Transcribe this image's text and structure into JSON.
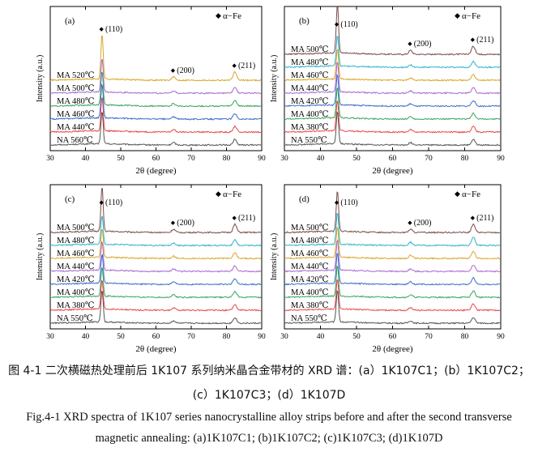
{
  "chart_data": [
    {
      "type": "line",
      "panel_label": "(a)",
      "xlabel": "2θ (degree)",
      "ylabel": "Intensity (a.u.)",
      "xlim": [
        30,
        90
      ],
      "xticks": [
        30,
        40,
        50,
        60,
        70,
        80,
        90
      ],
      "legend_marker": "◆",
      "legend_label": "α−Fe",
      "legend_position": "top-right",
      "peaks": [
        {
          "label": "(110)",
          "x": 44.7
        },
        {
          "label": "(200)",
          "x": 65.0
        },
        {
          "label": "(211)",
          "x": 82.4
        }
      ],
      "series": [
        {
          "name": "NA 560℃",
          "color": "#555555",
          "peak_heights": [
            40,
            3,
            7
          ]
        },
        {
          "name": "MA 440℃",
          "color": "#e8474b",
          "peak_heights": [
            42,
            3,
            7
          ]
        },
        {
          "name": "MA 460℃",
          "color": "#3b6fc7",
          "peak_heights": [
            42,
            3,
            7
          ]
        },
        {
          "name": "MA 480℃",
          "color": "#3aa45a",
          "peak_heights": [
            42,
            3,
            7
          ]
        },
        {
          "name": "MA 500℃",
          "color": "#a86ad1",
          "peak_heights": [
            42,
            3,
            7
          ]
        },
        {
          "name": "MA 520℃",
          "color": "#d9a628",
          "peak_heights": [
            55,
            4,
            10
          ]
        }
      ]
    },
    {
      "type": "line",
      "panel_label": "(b)",
      "xlabel": "2θ (degree)",
      "ylabel": "Intensity (a.u.)",
      "xlim": [
        30,
        90
      ],
      "xticks": [
        30,
        40,
        50,
        60,
        70,
        80,
        90
      ],
      "legend_marker": "◆",
      "legend_label": "α−Fe",
      "legend_position": "top-right",
      "peaks": [
        {
          "label": "(110)",
          "x": 44.7
        },
        {
          "label": "(200)",
          "x": 65.0
        },
        {
          "label": "(211)",
          "x": 82.4
        }
      ],
      "series": [
        {
          "name": "NA 550℃",
          "color": "#555555",
          "peak_heights": [
            40,
            3,
            7
          ]
        },
        {
          "name": "MA 380℃",
          "color": "#e8474b",
          "peak_heights": [
            38,
            3,
            7
          ]
        },
        {
          "name": "MA 400℃",
          "color": "#3aa45a",
          "peak_heights": [
            38,
            3,
            7
          ]
        },
        {
          "name": "MA 420℃",
          "color": "#3b6fc7",
          "peak_heights": [
            38,
            3,
            7
          ]
        },
        {
          "name": "MA 440℃",
          "color": "#a86ad1",
          "peak_heights": [
            38,
            3,
            7
          ]
        },
        {
          "name": "MA 460℃",
          "color": "#d9a628",
          "peak_heights": [
            38,
            3,
            7
          ]
        },
        {
          "name": "MA 480℃",
          "color": "#2fb5c9",
          "peak_heights": [
            38,
            3,
            7
          ]
        },
        {
          "name": "MA 500℃",
          "color": "#7a4a4a",
          "peak_heights": [
            60,
            5,
            10
          ]
        }
      ]
    },
    {
      "type": "line",
      "panel_label": "(c)",
      "xlabel": "2θ (degree)",
      "ylabel": "Intensity (a.u.)",
      "xlim": [
        30,
        90
      ],
      "xticks": [
        30,
        40,
        50,
        60,
        70,
        80,
        90
      ],
      "legend_marker": "◆",
      "legend_label": "α−Fe",
      "legend_position": "top-right",
      "peaks": [
        {
          "label": "(110)",
          "x": 44.7
        },
        {
          "label": "(200)",
          "x": 65.0
        },
        {
          "label": "(211)",
          "x": 82.4
        }
      ],
      "series": [
        {
          "name": "NA 550℃",
          "color": "#555555",
          "peak_heights": [
            40,
            3,
            7
          ]
        },
        {
          "name": "MA 380℃",
          "color": "#e8474b",
          "peak_heights": [
            36,
            3,
            7
          ]
        },
        {
          "name": "MA 400℃",
          "color": "#3aa45a",
          "peak_heights": [
            36,
            3,
            7
          ]
        },
        {
          "name": "MA 420℃",
          "color": "#3b6fc7",
          "peak_heights": [
            36,
            3,
            7
          ]
        },
        {
          "name": "MA 440℃",
          "color": "#a86ad1",
          "peak_heights": [
            36,
            3,
            7
          ]
        },
        {
          "name": "MA 460℃",
          "color": "#d9a628",
          "peak_heights": [
            36,
            3,
            7
          ]
        },
        {
          "name": "MA 480℃",
          "color": "#2fb5c9",
          "peak_heights": [
            36,
            3,
            7
          ]
        },
        {
          "name": "MA 500℃",
          "color": "#7a4a4a",
          "peak_heights": [
            55,
            4,
            10
          ]
        }
      ]
    },
    {
      "type": "line",
      "panel_label": "(d)",
      "xlabel": "2θ (degree)",
      "ylabel": "Intensity (a.u.)",
      "xlim": [
        30,
        90
      ],
      "xticks": [
        30,
        40,
        50,
        60,
        70,
        80,
        90
      ],
      "legend_marker": "◆",
      "legend_label": "α−Fe",
      "legend_position": "top-right",
      "peaks": [
        {
          "label": "(110)",
          "x": 44.7
        },
        {
          "label": "(200)",
          "x": 65.0
        },
        {
          "label": "(211)",
          "x": 82.4
        }
      ],
      "series": [
        {
          "name": "NA 550℃",
          "color": "#555555",
          "peak_heights": [
            40,
            3,
            7
          ]
        },
        {
          "name": "MA 380℃",
          "color": "#e8474b",
          "peak_heights": [
            38,
            3,
            8
          ]
        },
        {
          "name": "MA 400℃",
          "color": "#3aa45a",
          "peak_heights": [
            38,
            3,
            8
          ]
        },
        {
          "name": "MA 420℃",
          "color": "#3b6fc7",
          "peak_heights": [
            38,
            3,
            8
          ]
        },
        {
          "name": "MA 440℃",
          "color": "#a86ad1",
          "peak_heights": [
            38,
            3,
            8
          ]
        },
        {
          "name": "MA 460℃",
          "color": "#d9a628",
          "peak_heights": [
            38,
            4,
            9
          ]
        },
        {
          "name": "MA 480℃",
          "color": "#2fb5c9",
          "peak_heights": [
            40,
            4,
            10
          ]
        },
        {
          "name": "MA 500℃",
          "color": "#7a4a4a",
          "peak_heights": [
            50,
            4,
            10
          ]
        }
      ]
    }
  ],
  "caption": {
    "zh_line1": "图 4-1 二次横磁热处理前后 1K107 系列纳米晶合金带材的 XRD 谱：(a）1K107C1；(b）1K107C2；",
    "zh_line2": "(c）1K107C3；(d）1K107D",
    "en_line1": "Fig.4-1 XRD spectra of 1K107 series nanocrystalline alloy strips before and after the second transverse",
    "en_line2": "magnetic annealing: (a)1K107C1; (b)1K107C2; (c)1K107C3; (d)1K107D"
  }
}
